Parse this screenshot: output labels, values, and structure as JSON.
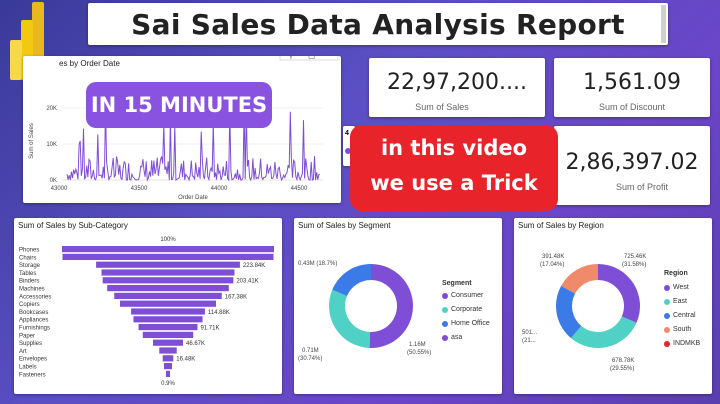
{
  "header": {
    "title": "Sai Sales Data Analysis Report"
  },
  "overlay": {
    "minutes_label": "IN 15 MINUTES",
    "trick_line1": "in this video",
    "trick_line2": "we use a Trick",
    "partial_legend_text": "4"
  },
  "colors": {
    "accent": "#7a4fd0",
    "red": "#e8232a",
    "consumer": "#7e4fd6",
    "corporate": "#4fd1c5",
    "home_office": "#3b7be8",
    "west": "#7e4fd6",
    "east": "#4fd1c5",
    "central": "#3b7be8",
    "south": "#f08a6a",
    "indmkb": "#e8232a"
  },
  "kpis": {
    "sales": {
      "value": "22,97,200....",
      "label": "Sum of Sales"
    },
    "discount": {
      "value": "1,561.09",
      "label": "Sum of Discount"
    },
    "profit": {
      "value": "2,86,397.02",
      "label": "Sum of Profit"
    }
  },
  "line_chart": {
    "title_partial": "es by Order Date",
    "ylabel": "Sum of Sales",
    "xlabel": "Order Date",
    "y_ticks": [
      "20K",
      "10K",
      "0K"
    ],
    "x_ticks": [
      "43000",
      "43500",
      "44000",
      "44500"
    ]
  },
  "funnel": {
    "title": "Sum of Sales by Sub-Category",
    "top_label": "100%",
    "bottom_label": "0.9%",
    "categories": [
      "Phones",
      "Chairs",
      "Storage",
      "Tables",
      "Binders",
      "Machines",
      "Accessories",
      "Copiers",
      "Bookcases",
      "Appliances",
      "Furnishings",
      "Paper",
      "Supplies",
      "Art",
      "Envelopes",
      "Labels",
      "Fasteners"
    ],
    "value_labels": [
      "",
      "",
      "223.84K",
      "",
      "203.41K",
      "",
      "167.38K",
      "",
      "114.88K",
      "",
      "91.71K",
      "",
      "46.67K",
      "",
      "16.48K",
      "",
      ""
    ]
  },
  "segment_donut": {
    "title": "Sum of Sales by Segment",
    "legend_title": "Segment",
    "legend": [
      "Consumer",
      "Corporate",
      "Home Office",
      "asa"
    ],
    "labels": {
      "home_office": "0.43M (18.7%)",
      "corporate": "0.71M (30.74%)",
      "consumer": "1.16M (50.55%)"
    }
  },
  "region_donut": {
    "title": "Sum of Sales by Region",
    "legend_title": "Region",
    "legend": [
      "West",
      "East",
      "Central",
      "South",
      "INDMKB"
    ],
    "labels": {
      "south": "391.48K (17.04%)",
      "west": "725.46K (31.58%)",
      "central": "501... (21...)",
      "east": "678.78K (29.55%)"
    }
  },
  "chart_data": [
    {
      "type": "line",
      "title": "",
      "xlabel": "Order Date",
      "ylabel": "Sum of Sales",
      "ylim": [
        0,
        25000
      ],
      "xlim": [
        42900,
        44600
      ]
    },
    {
      "type": "bar",
      "title": "Sum of Sales by Sub-Category",
      "categories": [
        "Phones",
        "Chairs",
        "Storage",
        "Tables",
        "Binders",
        "Machines",
        "Accessories",
        "Copiers",
        "Bookcases",
        "Appliances",
        "Furnishings",
        "Paper",
        "Supplies",
        "Art",
        "Envelopes",
        "Labels",
        "Fasteners"
      ],
      "values": [
        330007,
        328449,
        223844,
        206966,
        203413,
        189239,
        167380,
        149528,
        114880,
        107532,
        91705,
        78479,
        46674,
        27119,
        16476,
        12486,
        3024
      ]
    },
    {
      "type": "pie",
      "title": "Sum of Sales by Segment",
      "categories": [
        "Consumer",
        "Corporate",
        "Home Office"
      ],
      "values": [
        50.55,
        30.74,
        18.7
      ]
    },
    {
      "type": "pie",
      "title": "Sum of Sales by Region",
      "categories": [
        "West",
        "East",
        "Central",
        "South"
      ],
      "values": [
        31.58,
        29.55,
        21.83,
        17.04
      ]
    }
  ]
}
